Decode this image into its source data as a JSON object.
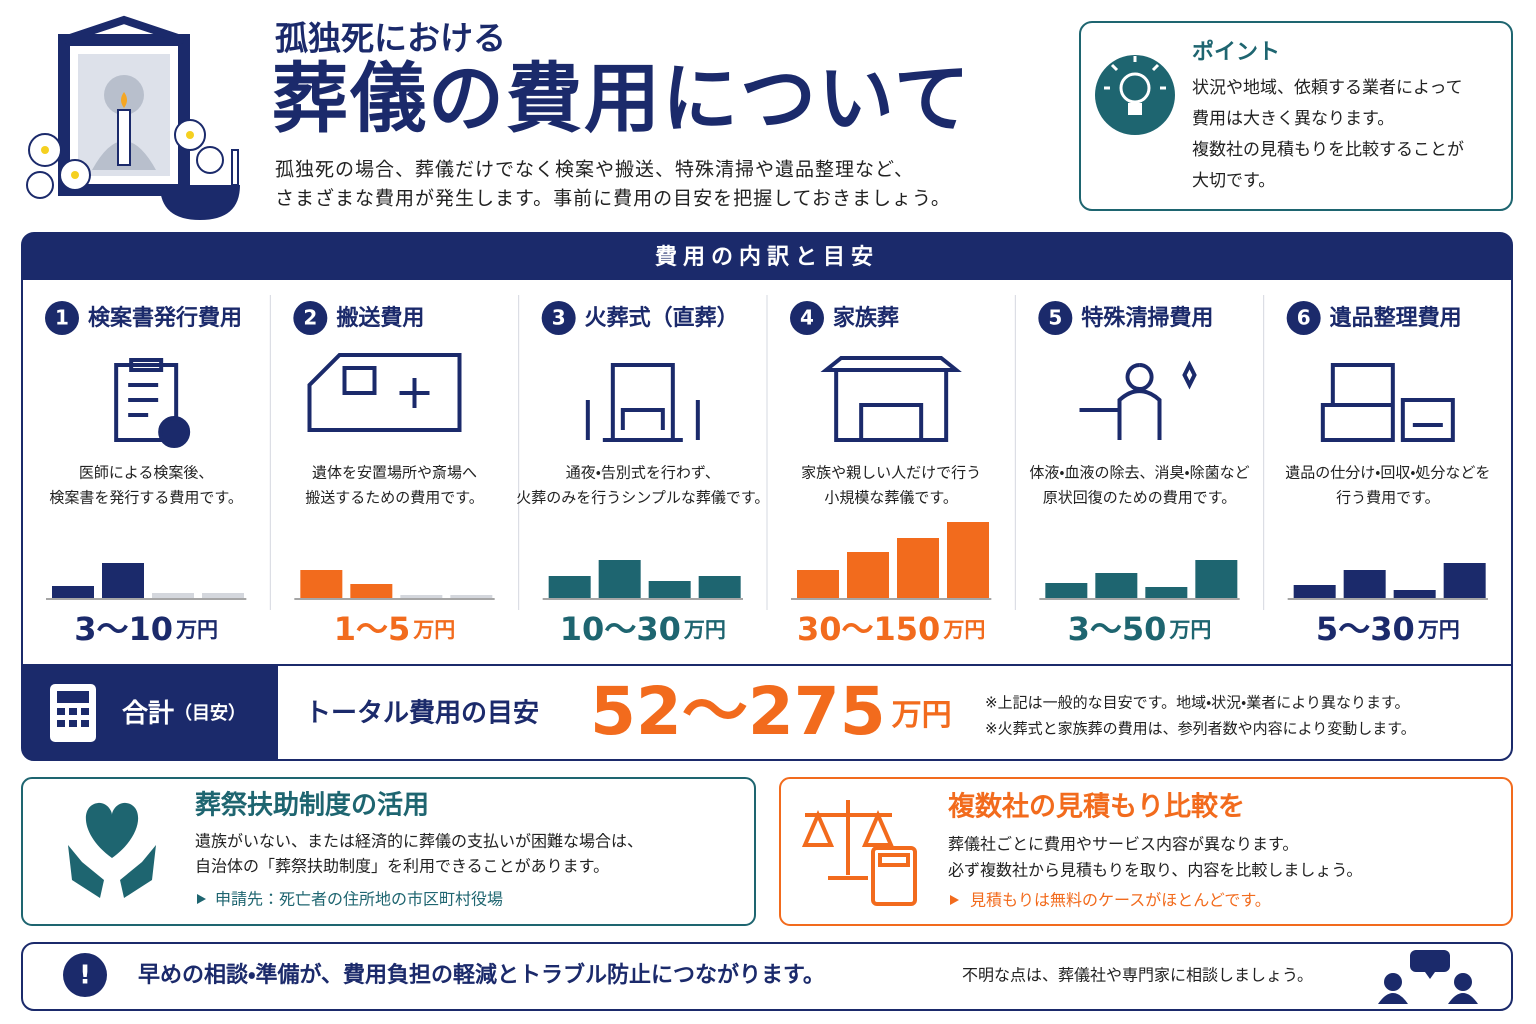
{
  "header": {
    "subtitle": "孤独死における",
    "title": "葬儀の費用について",
    "description": [
      "孤独死の場合、葬儀だけでなく検案や搬送、特殊清掃や遺品整理など、",
      "さまざまな費用が発生します。事前に費用の目安を把握しておきましょう。"
    ]
  },
  "point": {
    "title": "ポイント",
    "lines": [
      "状況や地域、依頼する業者によって",
      "費用は大きく異なります。",
      "複数社の見積もりを比較することが",
      "大切です。"
    ]
  },
  "breakdown": {
    "title": "費用の内訳と目安",
    "items": [
      {
        "number": "1",
        "title": "検案書発行費用",
        "description": [
          "医師による検案後、",
          "検案書を発行する費用です。"
        ],
        "range": "3〜10",
        "unit": "万円",
        "color": "#1b2a6b"
      },
      {
        "number": "2",
        "title": "搬送費用",
        "description": [
          "遺体を安置場所や斎場へ",
          "搬送するための費用です。"
        ],
        "range": "1〜5",
        "unit": "万円",
        "color": "#f26b1d"
      },
      {
        "number": "3",
        "title": "火葬式（直葬）",
        "description": [
          "通夜・告別式を行わず、",
          "火葬のみを行うシンプルな葬儀です。"
        ],
        "range": "10〜30",
        "unit": "万円",
        "color": "#1e6570"
      },
      {
        "number": "4",
        "title": "家族葬",
        "description": [
          "家族や親しい人だけで行う",
          "小規模な葬儀です。"
        ],
        "range": "30〜150",
        "unit": "万円",
        "color": "#f26b1d"
      },
      {
        "number": "5",
        "title": "特殊清掃費用",
        "description": [
          "体液・血液の除去、消臭・除菌など",
          "原状回復のための費用です。"
        ],
        "range": "3〜50",
        "unit": "万円",
        "color": "#1e6570"
      },
      {
        "number": "6",
        "title": "遺品整理費用",
        "description": [
          "遺品の仕分け・回収・処分などを",
          "行う費用です。"
        ],
        "range": "5〜30",
        "unit": "万円",
        "color": "#1b2a6b"
      }
    ]
  },
  "total": {
    "label": "合計",
    "label_note": "（目安）",
    "caption": "トータル費用の目安",
    "range": "52〜275",
    "unit": "万円",
    "notes": [
      "※上記は一般的な目安です。地域・状況・業者により異なります。",
      "※火葬式と家族葬の費用は、参列者数や内容により変動します。"
    ]
  },
  "support": {
    "title": "葬祭扶助制度の活用",
    "lines": [
      "遺族がいない、または経済的に葬儀の支払いが困難な場合は、",
      "自治体の「葬祭扶助制度」を利用できることがあります。"
    ],
    "note": "申請先：死亡者の住所地の市区町村役場"
  },
  "compare": {
    "title": "複数社の見積もり比較を",
    "lines": [
      "葬儀社ごとに費用やサービス内容が異なります。",
      "必ず複数社から見積もりを取り、内容を比較しましょう。"
    ],
    "note": "見積もりは無料のケースがほとんどです。"
  },
  "footer": {
    "message": "早めの相談・準備が、費用負担の軽減とトラブル防止につながります。",
    "sub": "不明な点は、葬儀社や専門家に相談しましょう。"
  }
}
